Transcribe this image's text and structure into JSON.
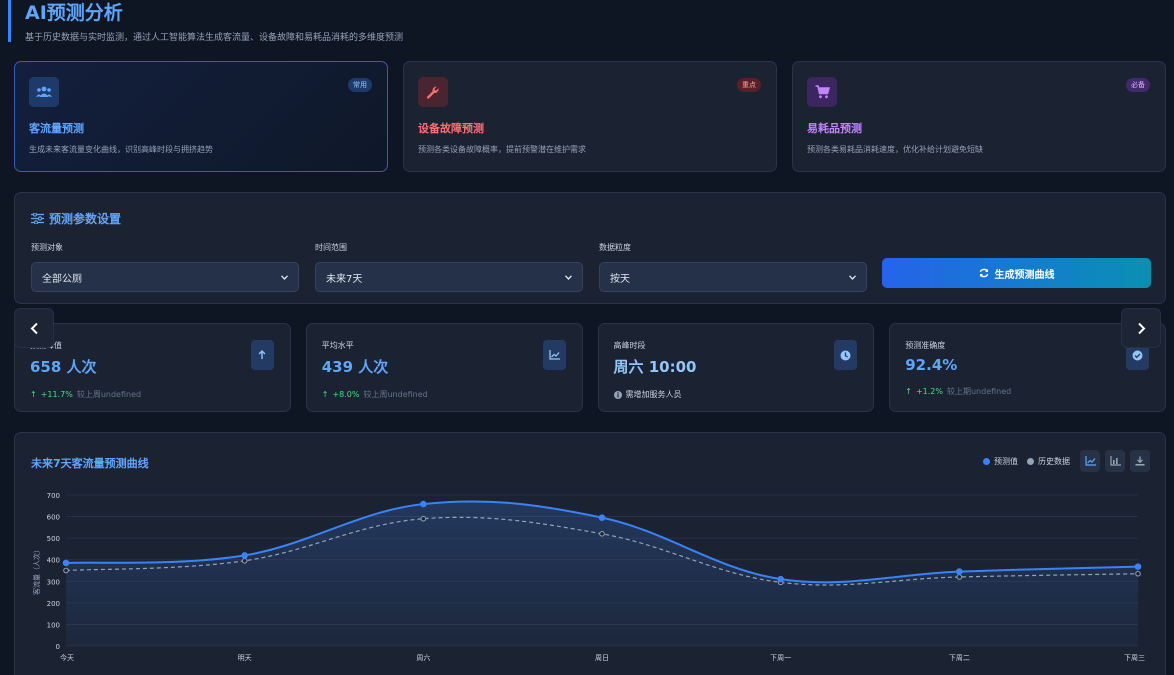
{
  "header": {
    "title": "AI预测分析",
    "subtitle": "基于历史数据与实时监测，通过人工智能算法生成客流量、设备故障和易耗品消耗的多维度预测"
  },
  "cards": [
    {
      "title": "客流量预测",
      "desc": "生成未来客流量变化曲线，识别高峰时段与拥挤趋势",
      "badge": "常用",
      "icon": "users-icon",
      "color": "#60a5fa"
    },
    {
      "title": "设备故障预测",
      "desc": "预测各类设备故障概率，提前预警潜在维护需求",
      "badge": "重点",
      "icon": "wrench-icon",
      "color": "#f87171"
    },
    {
      "title": "易耗品预测",
      "desc": "预测各类易耗品消耗速度，优化补给计划避免短缺",
      "badge": "必备",
      "icon": "cart-icon",
      "color": "#c084fc"
    }
  ],
  "params": {
    "title": "预测参数设置",
    "target_label": "预测对象",
    "target_value": "全部公厕",
    "range_label": "时间范围",
    "range_value": "未来7天",
    "granularity_label": "数据粒度",
    "granularity_value": "按天",
    "generate_label": "生成预测曲线"
  },
  "stats": [
    {
      "label": "预测峰值",
      "value": "658 人次",
      "trend": "+11.7%",
      "note": "较上周undefined",
      "icon": "arrow-up-icon"
    },
    {
      "label": "平均水平",
      "value": "439 人次",
      "trend": "+8.0%",
      "note": "较上周undefined",
      "icon": "line-chart-icon"
    },
    {
      "label": "高峰时段",
      "value": "周六 10:00",
      "trend": "",
      "note": "需增加服务人员",
      "icon": "clock-icon"
    },
    {
      "label": "预测准确度",
      "value": "92.4%",
      "trend": "+1.2%",
      "note": "较上期undefined",
      "icon": "check-circle-icon"
    }
  ],
  "chart": {
    "title": "未来7天客流量预测曲线",
    "legend_pred": "预测值",
    "legend_hist": "历史数据",
    "colors": {
      "pred": "#3b82f6",
      "hist": "#94a3b8"
    }
  },
  "chart_data": {
    "type": "line",
    "categories": [
      "今天",
      "明天",
      "周六",
      "周日",
      "下周一",
      "下周二",
      "下周三"
    ],
    "series": [
      {
        "name": "预测值",
        "values": [
          385,
          420,
          658,
          595,
          310,
          345,
          368
        ]
      },
      {
        "name": "历史数据",
        "values": [
          350,
          395,
          590,
          520,
          295,
          320,
          335
        ]
      }
    ],
    "ylabel": "客流量（人次）",
    "ylim": [
      0,
      700
    ],
    "yticks": [
      0,
      100,
      200,
      300,
      400,
      500,
      600,
      700
    ],
    "grid": true,
    "legend_position": "top-right"
  }
}
